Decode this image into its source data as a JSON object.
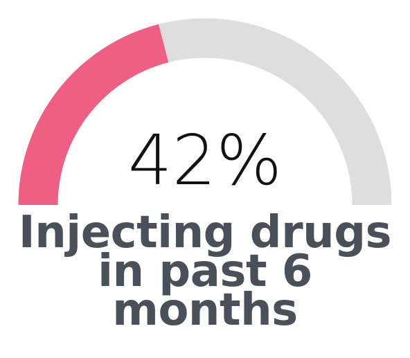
{
  "chart_data": {
    "type": "gauge",
    "value": 42,
    "max": 100,
    "display_value": "42%",
    "label": "Injecting drugs in past 6 months",
    "colors": {
      "filled": "#ef5f83",
      "track": "#dedede",
      "label": "#4a5059",
      "value": "#111111"
    }
  }
}
